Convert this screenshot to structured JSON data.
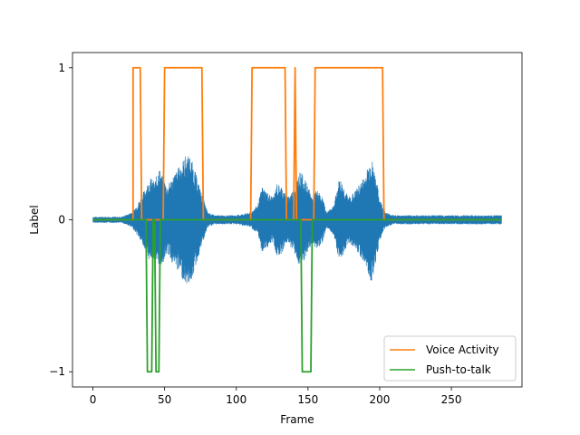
{
  "chart_data": {
    "type": "line",
    "xlabel": "Frame",
    "ylabel": "Label",
    "xlim": [
      -14.25,
      299.25
    ],
    "ylim": [
      -1.1,
      1.1
    ],
    "xticks": [
      0,
      50,
      100,
      150,
      200,
      250
    ],
    "yticks": [
      -1,
      0,
      1
    ],
    "xtick_labels": [
      "0",
      "50",
      "100",
      "150",
      "200",
      "250"
    ],
    "ytick_labels": [
      "−1",
      "0",
      "1"
    ],
    "legend_position": "lower-right",
    "waveform": {
      "color": "#1f77b4",
      "x_range": [
        0,
        285
      ],
      "envelope": [
        [
          0,
          0.02
        ],
        [
          20,
          0.02
        ],
        [
          25,
          0.04
        ],
        [
          28,
          0.06
        ],
        [
          32,
          0.12
        ],
        [
          35,
          0.18
        ],
        [
          40,
          0.28
        ],
        [
          43,
          0.25
        ],
        [
          46,
          0.35
        ],
        [
          48,
          0.3
        ],
        [
          52,
          0.22
        ],
        [
          55,
          0.28
        ],
        [
          60,
          0.35
        ],
        [
          65,
          0.43
        ],
        [
          68,
          0.42
        ],
        [
          72,
          0.3
        ],
        [
          75,
          0.2
        ],
        [
          80,
          0.05
        ],
        [
          85,
          0.03
        ],
        [
          100,
          0.03
        ],
        [
          110,
          0.05
        ],
        [
          115,
          0.1
        ],
        [
          118,
          0.22
        ],
        [
          122,
          0.18
        ],
        [
          126,
          0.15
        ],
        [
          128,
          0.24
        ],
        [
          132,
          0.22
        ],
        [
          135,
          0.15
        ],
        [
          140,
          0.2
        ],
        [
          144,
          0.32
        ],
        [
          146,
          0.3
        ],
        [
          150,
          0.22
        ],
        [
          153,
          0.15
        ],
        [
          156,
          0.2
        ],
        [
          160,
          0.15
        ],
        [
          163,
          0.05
        ],
        [
          168,
          0.1
        ],
        [
          172,
          0.28
        ],
        [
          175,
          0.22
        ],
        [
          178,
          0.15
        ],
        [
          182,
          0.18
        ],
        [
          185,
          0.22
        ],
        [
          190,
          0.3
        ],
        [
          194,
          0.42
        ],
        [
          197,
          0.3
        ],
        [
          200,
          0.14
        ],
        [
          204,
          0.05
        ],
        [
          210,
          0.03
        ],
        [
          285,
          0.03
        ]
      ]
    },
    "series": [
      {
        "name": "Voice Activity",
        "color": "#ff7f0e",
        "x": [
          0,
          28,
          28,
          33,
          34,
          49,
          50,
          76,
          77,
          110,
          111,
          134,
          135,
          140,
          141,
          142,
          143,
          154,
          155,
          202,
          203,
          285
        ],
        "y": [
          0,
          0,
          1,
          1,
          0,
          0,
          1,
          1,
          0,
          0,
          1,
          1,
          0,
          0,
          1,
          0,
          0,
          0,
          1,
          1,
          0,
          0
        ]
      },
      {
        "name": "Push-to-talk",
        "color": "#2ca02c",
        "x": [
          0,
          37,
          38,
          41,
          42,
          43,
          44,
          46,
          47,
          145,
          146,
          152,
          153,
          285
        ],
        "y": [
          0,
          0,
          -1,
          -1,
          0,
          0,
          -1,
          -1,
          0,
          0,
          -1,
          -1,
          0,
          0
        ]
      }
    ]
  }
}
